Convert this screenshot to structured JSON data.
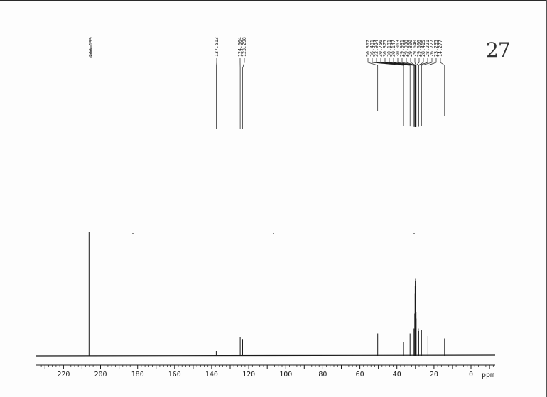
{
  "annotation": {
    "handwritten_label": "27"
  },
  "chart_data": {
    "type": "line",
    "title": "",
    "xlabel": "ppm",
    "ylabel": "",
    "xlim": [
      233,
      -12
    ],
    "x_reversed": true,
    "grid": false,
    "x_ticks": [
      220,
      200,
      180,
      160,
      140,
      120,
      100,
      80,
      60,
      40,
      20,
      0
    ],
    "x_tick_labels": [
      "220",
      "200",
      "180",
      "160",
      "140",
      "120",
      "100",
      "80",
      "60",
      "40",
      "20",
      "0"
    ],
    "peaks": [
      {
        "label": "206.199",
        "ppm": 206.199,
        "height": 1.0
      },
      {
        "label": "137.513",
        "ppm": 137.513,
        "height": 0.04
      },
      {
        "label": "124.604",
        "ppm": 124.604,
        "height": 0.15
      },
      {
        "label": "123.298",
        "ppm": 123.298,
        "height": 0.13
      },
      {
        "label": "50.367",
        "ppm": 50.367,
        "height": 0.18
      },
      {
        "label": "36.481",
        "ppm": 36.481,
        "height": 0.11
      },
      {
        "label": "32.924",
        "ppm": 32.924,
        "height": 0.18
      },
      {
        "label": "30.756",
        "ppm": 30.756,
        "height": 0.22
      },
      {
        "label": "30.375",
        "ppm": 30.375,
        "height": 0.34
      },
      {
        "label": "30.181",
        "ppm": 30.181,
        "height": 0.5
      },
      {
        "label": "30.147",
        "ppm": 30.147,
        "height": 0.56
      },
      {
        "label": "30.063",
        "ppm": 30.063,
        "height": 0.6
      },
      {
        "label": "29.931",
        "ppm": 29.931,
        "height": 0.62
      },
      {
        "label": "29.938",
        "ppm": 29.938,
        "height": 0.58
      },
      {
        "label": "29.800",
        "ppm": 29.8,
        "height": 0.45
      },
      {
        "label": "29.640",
        "ppm": 29.64,
        "height": 0.35
      },
      {
        "label": "29.606",
        "ppm": 29.606,
        "height": 0.3
      },
      {
        "label": "28.415",
        "ppm": 28.415,
        "height": 0.22
      },
      {
        "label": "28.221",
        "ppm": 28.221,
        "height": 0.2
      },
      {
        "label": "26.727",
        "ppm": 26.727,
        "height": 0.21
      },
      {
        "label": "23.235",
        "ppm": 23.235,
        "height": 0.16
      },
      {
        "label": "14.277",
        "ppm": 14.277,
        "height": 0.14
      }
    ]
  },
  "colors": {
    "ink": "#1a1a1a",
    "paper": "#fdfdfd"
  }
}
